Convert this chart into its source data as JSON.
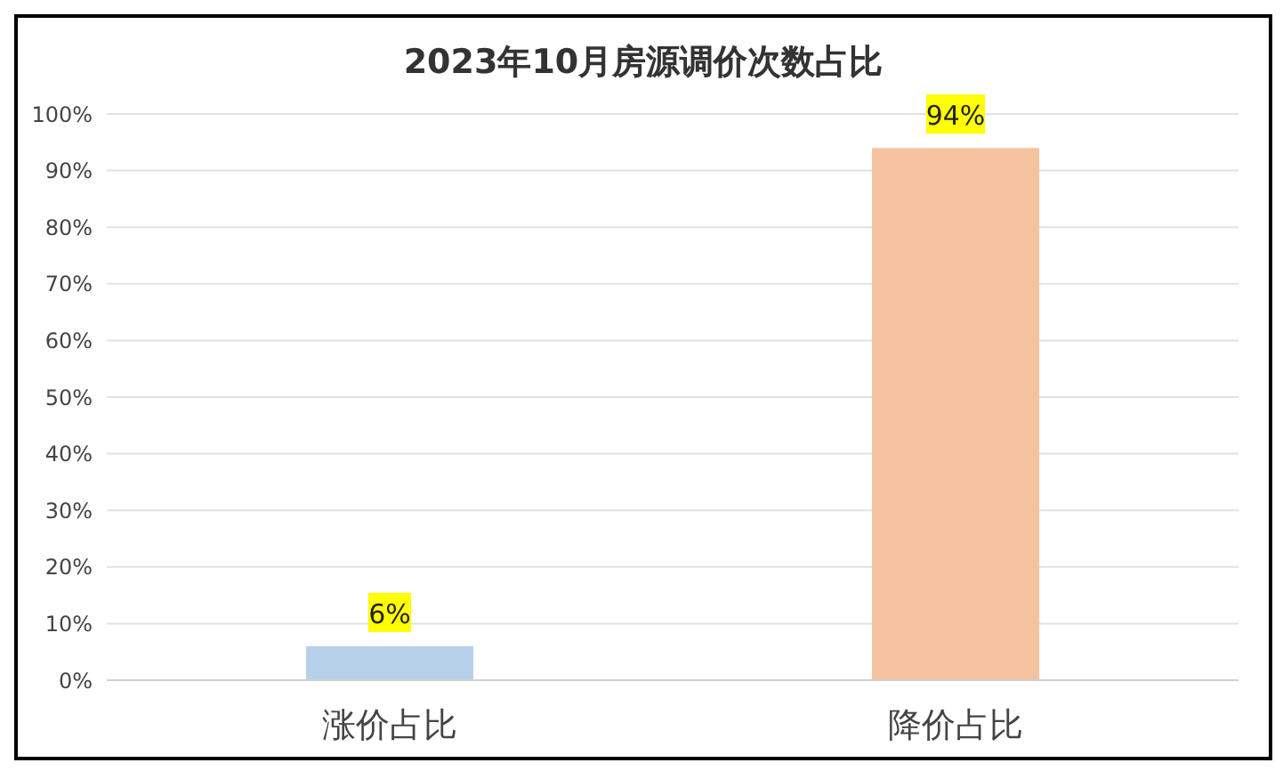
{
  "chart_data": {
    "type": "bar",
    "title": "2023年10月房源调价次数占比",
    "categories": [
      "涨价占比",
      "降价占比"
    ],
    "values": [
      6,
      94
    ],
    "colors": [
      "#b7d1eb",
      "#f5c3a0"
    ],
    "value_labels": [
      "6%",
      "94%"
    ],
    "ylim": [
      0,
      100
    ],
    "yticks": [
      {
        "value": 0,
        "label": "0%"
      },
      {
        "value": 10,
        "label": "10%"
      },
      {
        "value": 20,
        "label": "20%"
      },
      {
        "value": 30,
        "label": "30%"
      },
      {
        "value": 40,
        "label": "40%"
      },
      {
        "value": 50,
        "label": "50%"
      },
      {
        "value": 60,
        "label": "60%"
      },
      {
        "value": 70,
        "label": "70%"
      },
      {
        "value": 80,
        "label": "80%"
      },
      {
        "value": 90,
        "label": "90%"
      },
      {
        "value": 100,
        "label": "100%"
      }
    ],
    "grid": "y"
  }
}
